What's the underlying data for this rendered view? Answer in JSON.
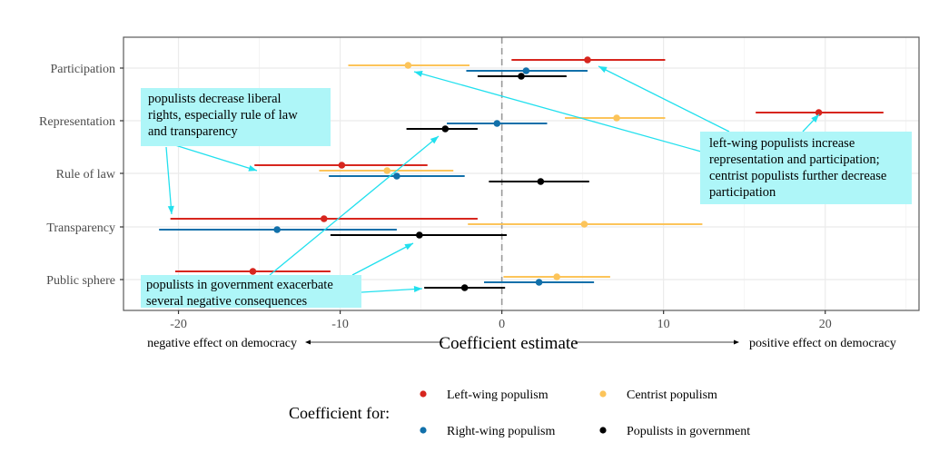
{
  "chart_data": {
    "type": "scatter",
    "subtype": "coefficient-plot-with-confidence-intervals",
    "title": "",
    "xlabel": "Coefficient estimate",
    "xlabel_left": "negative effect on democracy",
    "xlabel_right": "positive effect on democracy",
    "ylabel": "",
    "xlim": [
      -23.4,
      25.8
    ],
    "x_ticks": [
      -20,
      -10,
      0,
      10,
      20
    ],
    "x_tick_labels": [
      "-20",
      "-10",
      "0",
      "10",
      "20"
    ],
    "grid": true,
    "reference_line": {
      "x": 0,
      "style": "dashed"
    },
    "categories": [
      "Participation",
      "Representation",
      "Rule of law",
      "Transparency",
      "Public sphere"
    ],
    "legend": {
      "title": "Coefficient for:",
      "position": "bottom",
      "entries": [
        "Left-wing populism",
        "Centrist populism",
        "Right-wing populism",
        "Populists in government"
      ]
    },
    "series": [
      {
        "name": "Left-wing populism",
        "color": "#D7261E",
        "estimates": [
          5.3,
          19.6,
          -9.9,
          -11.0,
          -15.4
        ],
        "lower": [
          0.6,
          15.7,
          -15.3,
          -20.5,
          -20.2
        ],
        "upper": [
          10.1,
          23.6,
          -4.6,
          -1.5,
          -10.6
        ]
      },
      {
        "name": "Centrist populism",
        "color": "#FCC45A",
        "estimates": [
          -5.8,
          7.1,
          -7.1,
          5.1,
          3.4
        ],
        "lower": [
          -9.5,
          3.9,
          -11.3,
          -2.1,
          0.1
        ],
        "upper": [
          -2.0,
          10.1,
          -3.0,
          12.4,
          6.7
        ]
      },
      {
        "name": "Right-wing populism",
        "color": "#1170AA",
        "estimates": [
          1.5,
          -0.3,
          -6.5,
          -13.9,
          2.3
        ],
        "lower": [
          -2.2,
          -3.4,
          -10.7,
          -21.2,
          -1.1
        ],
        "upper": [
          5.3,
          2.8,
          -2.3,
          -6.5,
          5.7
        ]
      },
      {
        "name": "Populists in government",
        "color": "#000000",
        "estimates": [
          1.2,
          -3.5,
          2.4,
          -5.1,
          -2.3
        ],
        "lower": [
          -1.5,
          -5.9,
          -0.8,
          -10.6,
          -4.8
        ],
        "upper": [
          4.0,
          -1.5,
          5.4,
          0.3,
          0.2
        ]
      }
    ],
    "annotations": [
      {
        "text_lines": [
          "populists decrease liberal",
          "rights, especially rule of law",
          "and transparency"
        ],
        "points_to": [
          "Rule of law / Left-wing populism (lower bound)",
          "Transparency / Left-wing populism (lower bound)"
        ]
      },
      {
        "text_lines": [
          "populists in government exacerbate",
          "several negative consequences"
        ],
        "points_to": [
          "Representation / Populists in government",
          "Transparency / Populists in government",
          "Public sphere / Populists in government"
        ]
      },
      {
        "text_lines": [
          "left-wing populists increase",
          "representation and participation;",
          "centrist populists further decrease",
          "participation"
        ],
        "points_to": [
          "Participation / Centrist populism",
          "Participation / Left-wing populism",
          "Representation / Left-wing populism"
        ]
      }
    ],
    "annotation_style": {
      "box_color": "#AEF6F8",
      "arrow_color": "#22E0EE"
    }
  }
}
